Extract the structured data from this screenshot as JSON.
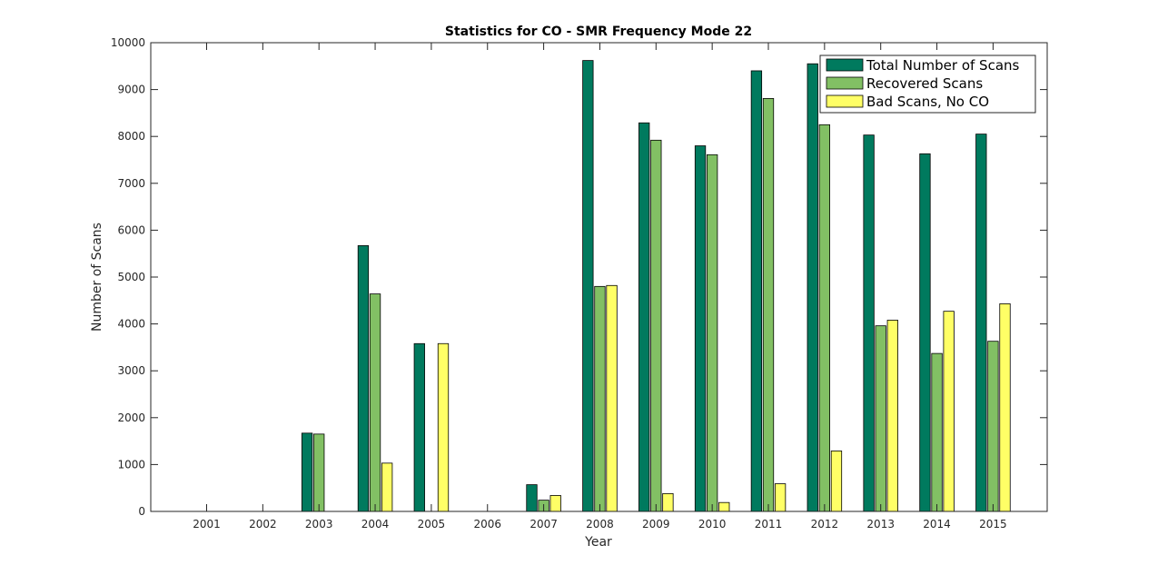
{
  "chart_data": {
    "type": "bar",
    "title": "Statistics for CO - SMR Frequency Mode 22",
    "xlabel": "Year",
    "ylabel": "Number of Scans",
    "ylim": [
      0,
      10000
    ],
    "yticks": [
      0,
      1000,
      2000,
      3000,
      4000,
      5000,
      6000,
      7000,
      8000,
      9000,
      10000
    ],
    "grid": false,
    "legend_position": "top-right",
    "categories": [
      "2001",
      "2002",
      "2003",
      "2004",
      "2005",
      "2006",
      "2007",
      "2008",
      "2009",
      "2010",
      "2011",
      "2012",
      "2013",
      "2014",
      "2015"
    ],
    "series": [
      {
        "name": "Total Number of Scans",
        "color": "#007a5e",
        "values": [
          0,
          0,
          1670,
          5670,
          3580,
          0,
          570,
          9620,
          8290,
          7800,
          9400,
          9550,
          8030,
          7630,
          8050
        ]
      },
      {
        "name": "Recovered Scans",
        "color": "#82c064",
        "values": [
          0,
          0,
          1650,
          4640,
          0,
          0,
          240,
          4800,
          7920,
          7610,
          8810,
          8250,
          3960,
          3370,
          3630
        ]
      },
      {
        "name": "Bad Scans, No CO",
        "color": "#ffff66",
        "values": [
          0,
          0,
          0,
          1030,
          3580,
          0,
          340,
          4820,
          380,
          190,
          590,
          1290,
          4080,
          4270,
          4430
        ]
      }
    ]
  }
}
